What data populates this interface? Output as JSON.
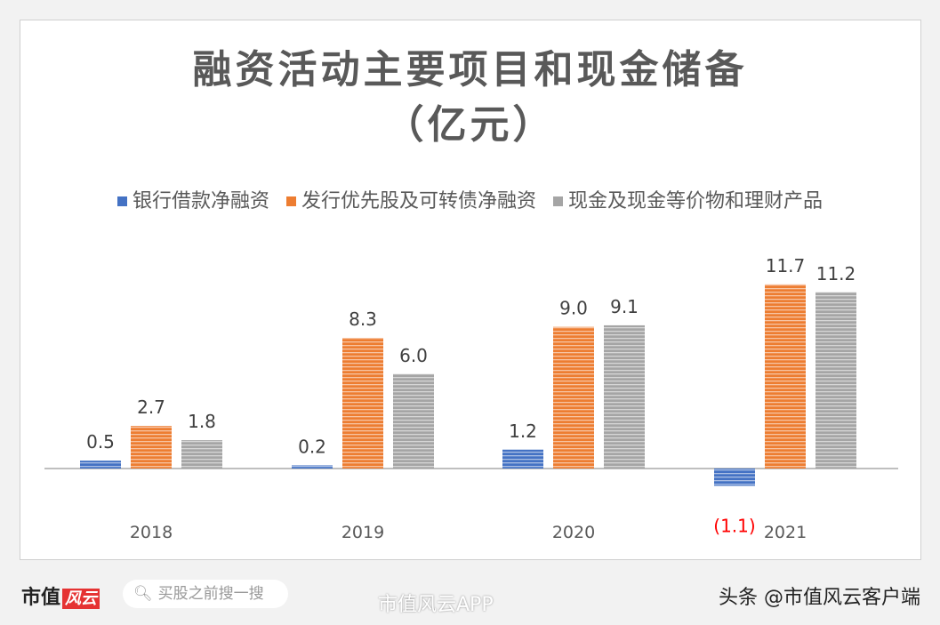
{
  "chart_data": {
    "type": "bar",
    "title": "融资活动主要项目和现金储备（亿元）",
    "title_lines": [
      "融资活动主要项目和现金储备",
      "（亿元）"
    ],
    "categories": [
      "2018",
      "2019",
      "2020",
      "2021"
    ],
    "series": [
      {
        "name": "银行借款净融资",
        "values": [
          0.5,
          0.2,
          1.2,
          -1.1
        ],
        "labels": [
          "0.5",
          "0.2",
          "1.2",
          "(1.1)"
        ],
        "color": "#4472c4"
      },
      {
        "name": "发行优先股及可转债净融资",
        "values": [
          2.7,
          8.3,
          9.0,
          11.7
        ],
        "labels": [
          "2.7",
          "8.3",
          "9.0",
          "11.7"
        ],
        "color": "#ed7d31"
      },
      {
        "name": "现金及现金等价物和理财产品",
        "values": [
          1.8,
          6.0,
          9.1,
          11.2
        ],
        "labels": [
          "1.8",
          "6.0",
          "9.1",
          "11.2"
        ],
        "color": "#a5a5a5"
      }
    ],
    "negative_label_color": "#ff0000",
    "legend_position": "top",
    "grid": false
  },
  "footer": {
    "logo_text": "市值",
    "logo_badge": "风云",
    "search_placeholder": "买股之前搜一搜",
    "weibo": "市值风云APP",
    "toutiao": "头条 @市值风云客户端"
  }
}
